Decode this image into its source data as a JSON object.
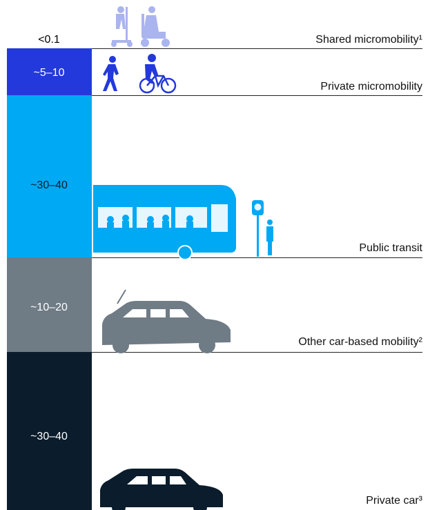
{
  "rows": [
    {
      "range": "<0.1",
      "label": "Shared micromobility¹"
    },
    {
      "range": "~5–10",
      "label": "Private micromobility"
    },
    {
      "range": "~30–40",
      "label": "Public transit"
    },
    {
      "range": "~10–20",
      "label": "Other car-based mobility²"
    },
    {
      "range": "~30–40",
      "label": "Private car³"
    }
  ]
}
